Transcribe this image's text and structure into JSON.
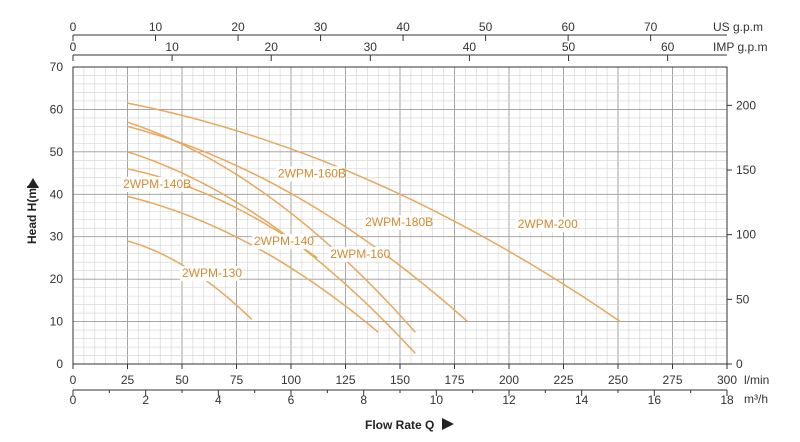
{
  "chart_data": {
    "type": "line",
    "colors": {
      "curve": "#E8A85A",
      "label": "#D4892E",
      "grid_minor": "#d2d2d2",
      "grid_major": "#9a9a9a",
      "axis": "#333333"
    },
    "x_axis_lpm": {
      "label": "Flow Rate Q",
      "unit": "l/min",
      "range": [
        0,
        300
      ],
      "ticks": [
        0,
        25,
        50,
        75,
        100,
        125,
        150,
        175,
        200,
        225,
        250,
        275,
        300
      ]
    },
    "x_axis_m3h": {
      "unit": "m³/h",
      "range": [
        0,
        18
      ],
      "ticks": [
        0,
        2,
        4,
        6,
        8,
        10,
        12,
        14,
        16,
        18
      ]
    },
    "x_axis_usgpm": {
      "unit": "US g.p.m",
      "ticks": [
        0,
        10,
        20,
        30,
        40,
        50,
        60,
        70
      ]
    },
    "x_axis_impgpm": {
      "unit": "IMP g.p.m",
      "ticks": [
        0,
        10,
        20,
        30,
        40,
        50,
        60
      ]
    },
    "y_axis_m": {
      "label": "Head H(m)",
      "range": [
        0,
        70
      ],
      "ticks": [
        0,
        10,
        20,
        30,
        40,
        50,
        60,
        70
      ]
    },
    "y_axis_ft": {
      "ticks": [
        0,
        50,
        100,
        150,
        200
      ]
    },
    "grid": true,
    "series": [
      {
        "name": "2WPM-130",
        "x": [
          25,
          82
        ],
        "y": [
          29,
          10.5
        ],
        "label_at": [
          50,
          20.5
        ]
      },
      {
        "name": "2WPM-140B",
        "x": [
          25,
          140
        ],
        "y": [
          39.5,
          7.5
        ],
        "label_at": [
          23,
          41.5
        ]
      },
      {
        "name": "2WPM-140",
        "x": [
          25,
          112
        ],
        "y": [
          46,
          25
        ],
        "label_at": [
          83,
          28
        ]
      },
      {
        "name": "2WPM-160",
        "x": [
          25,
          157
        ],
        "y": [
          50,
          2.5
        ],
        "label_at": [
          118,
          25
        ]
      },
      {
        "name": "2WPM-160B",
        "x": [
          25,
          157
        ],
        "y": [
          57,
          7.5
        ],
        "label_at": [
          94,
          44
        ]
      },
      {
        "name": "2WPM-180B",
        "x": [
          25,
          181
        ],
        "y": [
          56,
          10
        ],
        "label_at": [
          134,
          32.5
        ]
      },
      {
        "name": "2WPM-200",
        "x": [
          25,
          251
        ],
        "y": [
          61.5,
          10
        ],
        "label_at": [
          204,
          32
        ]
      }
    ]
  }
}
